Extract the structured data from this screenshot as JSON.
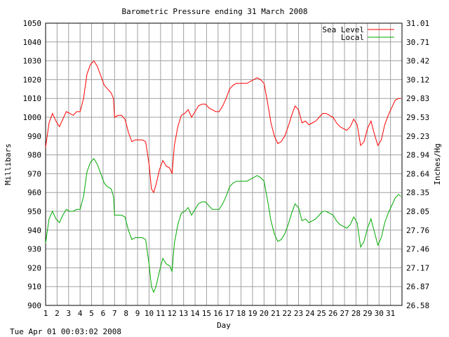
{
  "chart_data": {
    "type": "line",
    "title": "Barometric Pressure ending 31 March 2008",
    "xlabel": "Day",
    "ylabel": "Millibars",
    "y2label": "Inches/Hg",
    "footer": "Tue Apr 01 00:03:02 2008",
    "xlim": [
      1,
      32
    ],
    "ylim": [
      900,
      1050
    ],
    "x_ticks": [
      "1",
      "2",
      "3",
      "4",
      "5",
      "6",
      "7",
      "8",
      "9",
      "10",
      "11",
      "12",
      "13",
      "14",
      "15",
      "16",
      "17",
      "18",
      "19",
      "20",
      "21",
      "22",
      "23",
      "24",
      "25",
      "26",
      "27",
      "28",
      "29",
      "30",
      "31"
    ],
    "y_ticks": [
      "900",
      "910",
      "920",
      "930",
      "940",
      "950",
      "960",
      "970",
      "980",
      "990",
      "1000",
      "1010",
      "1020",
      "1030",
      "1040",
      "1050"
    ],
    "y2_ticks": [
      "26.58",
      "26.87",
      "27.17",
      "27.46",
      "27.76",
      "28.05",
      "28.35",
      "28.64",
      "28.94",
      "29.23",
      "29.53",
      "29.83",
      "30.12",
      "30.42",
      "30.71",
      "31.01"
    ],
    "grid": true,
    "legend_position": "top-right",
    "series": [
      {
        "name": "Sea Level",
        "color": "#ff0000",
        "x": [
          1,
          1.3,
          1.6,
          1.9,
          2.2,
          2.5,
          2.8,
          3.1,
          3.4,
          3.7,
          4.0,
          4.3,
          4.6,
          4.9,
          5.2,
          5.5,
          5.8,
          6.1,
          6.4,
          6.7,
          6.9,
          7.0,
          7.3,
          7.6,
          7.9,
          8.2,
          8.5,
          8.8,
          9.1,
          9.4,
          9.7,
          10.0,
          10.2,
          10.4,
          10.6,
          10.9,
          11.2,
          11.5,
          11.8,
          12.0,
          12.2,
          12.5,
          12.8,
          13.1,
          13.4,
          13.7,
          14.0,
          14.3,
          14.6,
          14.9,
          15.2,
          15.5,
          15.8,
          16.1,
          16.4,
          16.7,
          17.0,
          17.3,
          17.6,
          17.9,
          18.2,
          18.5,
          18.8,
          19.1,
          19.4,
          19.7,
          20.0,
          20.3,
          20.6,
          20.9,
          21.2,
          21.5,
          21.8,
          22.1,
          22.4,
          22.7,
          23.0,
          23.3,
          23.6,
          23.9,
          24.2,
          24.5,
          24.8,
          25.1,
          25.4,
          25.7,
          26.0,
          26.3,
          26.6,
          26.9,
          27.2,
          27.5,
          27.8,
          28.1,
          28.4,
          28.7,
          29.0,
          29.3,
          29.6,
          29.9,
          30.2,
          30.5,
          30.8,
          31.1,
          31.4,
          31.7,
          31.9
        ],
        "values": [
          984,
          997,
          1002,
          998,
          995,
          999,
          1003,
          1002,
          1001,
          1003,
          1003,
          1010,
          1023,
          1028,
          1030,
          1027,
          1022,
          1017,
          1015,
          1013,
          1010,
          1000,
          1001,
          1001,
          999,
          992,
          987,
          988,
          988,
          988,
          987,
          975,
          962,
          960,
          964,
          972,
          977,
          974,
          973,
          970,
          985,
          995,
          1001,
          1002,
          1004,
          1000,
          1003,
          1006,
          1007,
          1007,
          1005,
          1004,
          1003,
          1003,
          1006,
          1010,
          1015,
          1017,
          1018,
          1018,
          1018,
          1018,
          1019,
          1020,
          1021,
          1020,
          1018,
          1008,
          997,
          990,
          986,
          987,
          990,
          995,
          1001,
          1006,
          1004,
          997,
          998,
          996,
          997,
          998,
          1000,
          1002,
          1002,
          1001,
          1000,
          997,
          995,
          994,
          993,
          995,
          999,
          996,
          985,
          987,
          994,
          998,
          991,
          985,
          988,
          996,
          1001,
          1005,
          1009,
          1010,
          1010
        ]
      },
      {
        "name": "Local",
        "color": "#00aa00",
        "x": [
          1,
          1.3,
          1.6,
          1.9,
          2.2,
          2.5,
          2.8,
          3.1,
          3.4,
          3.7,
          4.0,
          4.3,
          4.6,
          4.9,
          5.2,
          5.5,
          5.8,
          6.1,
          6.4,
          6.7,
          6.9,
          7.0,
          7.3,
          7.6,
          7.9,
          8.2,
          8.5,
          8.8,
          9.1,
          9.4,
          9.7,
          10.0,
          10.2,
          10.4,
          10.6,
          10.9,
          11.2,
          11.5,
          11.8,
          12.0,
          12.2,
          12.5,
          12.8,
          13.1,
          13.4,
          13.7,
          14.0,
          14.3,
          14.6,
          14.9,
          15.2,
          15.5,
          15.8,
          16.1,
          16.4,
          16.7,
          17.0,
          17.3,
          17.6,
          17.9,
          18.2,
          18.5,
          18.8,
          19.1,
          19.4,
          19.7,
          20.0,
          20.3,
          20.6,
          20.9,
          21.2,
          21.5,
          21.8,
          22.1,
          22.4,
          22.7,
          23.0,
          23.3,
          23.6,
          23.9,
          24.2,
          24.5,
          24.8,
          25.1,
          25.4,
          25.7,
          26.0,
          26.3,
          26.6,
          26.9,
          27.2,
          27.5,
          27.8,
          28.1,
          28.4,
          28.7,
          29.0,
          29.3,
          29.6,
          29.9,
          30.2,
          30.5,
          30.8,
          31.1,
          31.4,
          31.7,
          31.9
        ],
        "values": [
          933,
          946,
          950,
          946,
          944,
          948,
          951,
          950,
          950,
          951,
          951,
          958,
          971,
          976,
          978,
          975,
          970,
          965,
          963,
          962,
          958,
          948,
          948,
          948,
          947,
          940,
          935,
          936,
          936,
          936,
          935,
          922,
          910,
          907,
          910,
          918,
          925,
          922,
          921,
          918,
          933,
          943,
          949,
          950,
          952,
          948,
          951,
          954,
          955,
          955,
          953,
          951,
          951,
          951,
          954,
          958,
          963,
          965,
          966,
          966,
          966,
          966,
          967,
          968,
          969,
          968,
          966,
          956,
          945,
          938,
          934,
          935,
          938,
          943,
          949,
          954,
          952,
          945,
          946,
          944,
          945,
          946,
          948,
          950,
          950,
          949,
          948,
          945,
          943,
          942,
          941,
          943,
          947,
          944,
          931,
          934,
          941,
          946,
          939,
          932,
          936,
          944,
          949,
          953,
          957,
          959,
          958
        ]
      }
    ]
  }
}
